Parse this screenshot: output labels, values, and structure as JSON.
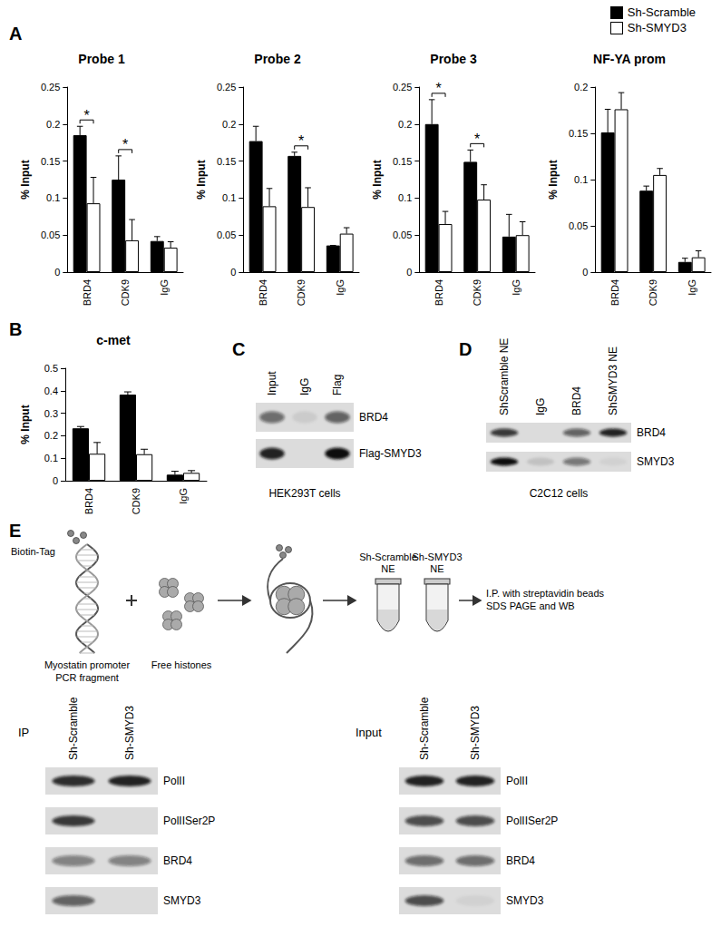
{
  "panel_labels": [
    "A",
    "B",
    "C",
    "D",
    "E"
  ],
  "chart_data": [
    {
      "type": "bar",
      "title": "Probe 1",
      "categories": [
        "BRD4",
        "CDK9",
        "IgG"
      ],
      "series": [
        {
          "name": "Sh-Scramble",
          "color": "#000000",
          "values": [
            0.185,
            0.125,
            0.042
          ],
          "errors": [
            0.012,
            0.032,
            0.006
          ]
        },
        {
          "name": "Sh-SMYD3",
          "color": "#ffffff",
          "values": [
            0.093,
            0.043,
            0.033
          ],
          "errors": [
            0.035,
            0.028,
            0.008
          ]
        }
      ],
      "ylabel": "% Input",
      "ylim": [
        0,
        0.25
      ],
      "yticks": [
        0,
        0.05,
        0.1,
        0.15,
        0.2,
        0.25
      ],
      "grid": false,
      "legend": "upper right",
      "significance": [
        {
          "category": "BRD4",
          "text": "*"
        },
        {
          "category": "CDK9",
          "text": "*"
        }
      ]
    },
    {
      "type": "bar",
      "title": "Probe 2",
      "categories": [
        "BRD4",
        "CDK9",
        "IgG"
      ],
      "series": [
        {
          "name": "Sh-Scramble",
          "color": "#000000",
          "values": [
            0.177,
            0.157,
            0.036
          ],
          "errors": [
            0.02,
            0.005,
            0
          ]
        },
        {
          "name": "Sh-SMYD3",
          "color": "#ffffff",
          "values": [
            0.089,
            0.088,
            0.052
          ],
          "errors": [
            0.024,
            0.026,
            0.008
          ]
        }
      ],
      "ylabel": "% Input",
      "ylim": [
        0,
        0.25
      ],
      "yticks": [
        0,
        0.05,
        0.1,
        0.15,
        0.2,
        0.25
      ],
      "grid": false,
      "significance": [
        {
          "category": "CDK9",
          "text": "*"
        }
      ]
    },
    {
      "type": "bar",
      "title": "Probe 3",
      "categories": [
        "BRD4",
        "CDK9",
        "IgG"
      ],
      "series": [
        {
          "name": "Sh-Scramble",
          "color": "#000000",
          "values": [
            0.2,
            0.149,
            0.048
          ],
          "errors": [
            0.033,
            0.016,
            0.03
          ]
        },
        {
          "name": "Sh-SMYD3",
          "color": "#ffffff",
          "values": [
            0.065,
            0.098,
            0.05
          ],
          "errors": [
            0.017,
            0.02,
            0.018
          ]
        }
      ],
      "ylabel": "% Input",
      "ylim": [
        0,
        0.25
      ],
      "yticks": [
        0,
        0.05,
        0.1,
        0.15,
        0.2,
        0.25
      ],
      "grid": false,
      "significance": [
        {
          "category": "BRD4",
          "text": "*"
        },
        {
          "category": "CDK9",
          "text": "*"
        }
      ]
    },
    {
      "type": "bar",
      "title": "NF-YA prom",
      "categories": [
        "BRD4",
        "CDK9",
        "IgG"
      ],
      "series": [
        {
          "name": "Sh-Scramble",
          "color": "#000000",
          "values": [
            0.151,
            0.088,
            0.011
          ],
          "errors": [
            0.025,
            0.005,
            0.004
          ]
        },
        {
          "name": "Sh-SMYD3",
          "color": "#ffffff",
          "values": [
            0.176,
            0.105,
            0.016
          ],
          "errors": [
            0.018,
            0.007,
            0.007
          ]
        }
      ],
      "ylabel": "% Input",
      "ylim": [
        0,
        0.2
      ],
      "yticks": [
        0,
        0.05,
        0.1,
        0.15,
        0.2
      ],
      "grid": false
    },
    {
      "type": "bar",
      "title": "c-met",
      "categories": [
        "BRD4",
        "CDK9",
        "IgG"
      ],
      "series": [
        {
          "name": "Sh-Scramble",
          "color": "#000000",
          "values": [
            0.233,
            0.383,
            0.027
          ],
          "errors": [
            0.008,
            0.012,
            0.015
          ]
        },
        {
          "name": "Sh-SMYD3",
          "color": "#ffffff",
          "values": [
            0.12,
            0.118,
            0.035
          ],
          "errors": [
            0.05,
            0.022,
            0.01
          ]
        }
      ],
      "ylabel": "% Input",
      "ylim": [
        0,
        0.5
      ],
      "yticks": [
        0,
        0.1,
        0.2,
        0.3,
        0.4,
        0.5
      ],
      "grid": false
    }
  ],
  "blots": [
    {
      "columns": [
        "Input",
        "IgG",
        "Flag"
      ],
      "rows": [
        {
          "label": "BRD4",
          "intensity": [
            0.55,
            0.08,
            0.6
          ]
        },
        {
          "label": "Flag-SMYD3",
          "intensity": [
            0.9,
            0,
            1
          ]
        }
      ],
      "caption": "HEK293T cells"
    },
    {
      "columns": [
        "ShScramble NE",
        "IgG",
        "BRD4",
        "ShSMYD3 NE"
      ],
      "rows": [
        {
          "label": "BRD4",
          "intensity": [
            0.8,
            0,
            0.6,
            0.9
          ]
        },
        {
          "label": "SMYD3",
          "intensity": [
            1,
            0.12,
            0.5,
            0.05
          ]
        }
      ],
      "caption": "C2C12 cells"
    },
    {
      "group": "IP",
      "columns": [
        "Sh-Scramble",
        "Sh-SMYD3"
      ],
      "rows": [
        {
          "label": "PolII",
          "intensity": [
            0.85,
            0.9
          ]
        },
        {
          "label": "PolIISer2P",
          "intensity": [
            0.8,
            0
          ]
        },
        {
          "label": "BRD4",
          "intensity": [
            0.45,
            0.45
          ]
        },
        {
          "label": "SMYD3",
          "intensity": [
            0.6,
            0
          ]
        }
      ]
    },
    {
      "group": "Input",
      "columns": [
        "Sh-Scramble",
        "Sh-SMYD3"
      ],
      "rows": [
        {
          "label": "PolII",
          "intensity": [
            0.9,
            0.9
          ]
        },
        {
          "label": "PolIISer2P",
          "intensity": [
            0.7,
            0.7
          ]
        },
        {
          "label": "BRD4",
          "intensity": [
            0.55,
            0.55
          ]
        },
        {
          "label": "SMYD3",
          "intensity": [
            0.7,
            0.05
          ]
        }
      ]
    }
  ],
  "diagram": {
    "biotin_tag": "Biotin-Tag",
    "fragment": [
      "Myostatin promoter",
      "PCR fragment"
    ],
    "histones": "Free histones",
    "extracts": [
      [
        "Sh-Scramble",
        "NE"
      ],
      [
        "Sh-SMYD3",
        "NE"
      ]
    ],
    "steps": [
      "I.P. with streptavidin beads",
      "SDS PAGE and WB"
    ]
  }
}
